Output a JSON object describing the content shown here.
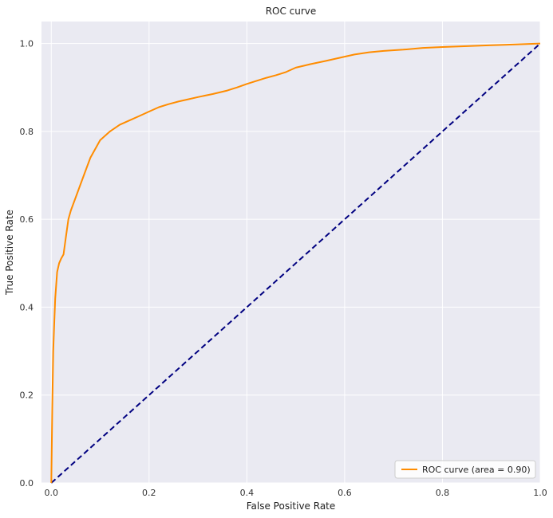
{
  "chart_data": {
    "type": "line",
    "title": "ROC curve",
    "xlabel": "False Positive Rate",
    "ylabel": "True Positive Rate",
    "xlim": [
      -0.02,
      1.0
    ],
    "ylim": [
      0.0,
      1.05
    ],
    "xticks": [
      0.0,
      0.2,
      0.4,
      0.6,
      0.8,
      1.0
    ],
    "xtick_labels": [
      "0.0",
      "0.2",
      "0.4",
      "0.6",
      "0.8",
      "1.0"
    ],
    "yticks": [
      0.0,
      0.2,
      0.4,
      0.6,
      0.8,
      1.0
    ],
    "ytick_labels": [
      "0.0",
      "0.2",
      "0.4",
      "0.6",
      "0.8",
      "1.0"
    ],
    "grid": true,
    "background": "#eaeaf2",
    "legend_position": "lower-right",
    "series": [
      {
        "name": "ROC curve (area = 0.90)",
        "color": "#ff8c00",
        "style": "solid",
        "x": [
          0.0,
          0.002,
          0.004,
          0.006,
          0.008,
          0.012,
          0.016,
          0.02,
          0.025,
          0.03,
          0.035,
          0.04,
          0.05,
          0.06,
          0.07,
          0.08,
          0.09,
          0.1,
          0.12,
          0.14,
          0.16,
          0.18,
          0.2,
          0.22,
          0.24,
          0.26,
          0.28,
          0.3,
          0.33,
          0.36,
          0.38,
          0.4,
          0.42,
          0.44,
          0.46,
          0.48,
          0.5,
          0.53,
          0.56,
          0.58,
          0.6,
          0.62,
          0.65,
          0.68,
          0.72,
          0.76,
          0.8,
          0.85,
          0.9,
          0.95,
          1.0
        ],
        "y": [
          0.0,
          0.17,
          0.3,
          0.36,
          0.42,
          0.48,
          0.5,
          0.51,
          0.52,
          0.56,
          0.6,
          0.62,
          0.65,
          0.68,
          0.71,
          0.74,
          0.76,
          0.78,
          0.8,
          0.815,
          0.825,
          0.835,
          0.845,
          0.855,
          0.862,
          0.868,
          0.873,
          0.878,
          0.885,
          0.893,
          0.9,
          0.908,
          0.915,
          0.922,
          0.928,
          0.935,
          0.945,
          0.953,
          0.96,
          0.965,
          0.97,
          0.975,
          0.98,
          0.983,
          0.986,
          0.99,
          0.992,
          0.994,
          0.996,
          0.998,
          1.0
        ]
      },
      {
        "name": "",
        "color": "#000080",
        "style": "dashed",
        "x": [
          0.0,
          1.0
        ],
        "y": [
          0.0,
          1.0
        ]
      }
    ]
  }
}
